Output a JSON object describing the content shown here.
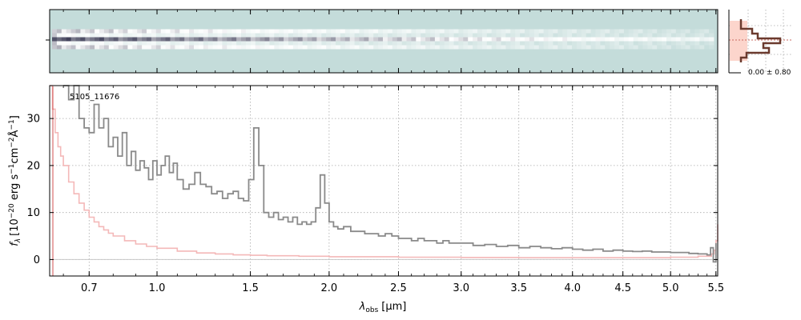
{
  "chart_data": [
    {
      "type": "heatmap",
      "description_role": "2D spectrum",
      "x_ticks": [
        "0.7",
        "1.0",
        "1.5",
        "2.0",
        "2.5",
        "3.0",
        "3.5",
        "4.0",
        "4.5",
        "5.0",
        "5.5"
      ],
      "x_ticks_um": [
        0.7,
        1.0,
        1.5,
        2.0,
        2.5,
        3.0,
        3.5,
        4.0,
        4.5,
        5.0,
        5.5
      ],
      "xlim_um": [
        0.55,
        5.52
      ],
      "colormap": [
        "#c4dcda",
        "#ffffff",
        "#1c1c3a"
      ],
      "trace_rows": [
        {
          "offset": 0,
          "level": 1.0
        },
        {
          "offset": 1,
          "level": 0.6
        },
        {
          "offset": -1,
          "level": 0.6
        },
        {
          "offset": 2,
          "level": 0.3
        },
        {
          "offset": -2,
          "level": 0.3
        }
      ]
    },
    {
      "type": "line",
      "description_role": "1D spectrum",
      "label": "5105_11676",
      "xlabel": "λ_obs [μm]",
      "xlabel_main": "λ",
      "xlabel_sub": "obs",
      "xlabel_unit": "[μm]",
      "ylabel": "f_λ [10^-20 erg s^-1 cm^-2 Å^-1]",
      "ylabel_parts": {
        "f": "f",
        "lam": "λ",
        "prefix": "[10",
        "exp1": "−20",
        "mid1": " erg s",
        "exp2": "−1",
        "mid2": "cm",
        "exp3": "−2",
        "mid3": "Å",
        "exp4": "−1",
        "end": "]"
      },
      "xlim_um": [
        0.55,
        5.52
      ],
      "ylim": [
        -3.5,
        37
      ],
      "x_ticks": [
        "0.7",
        "1.0",
        "1.5",
        "2.0",
        "2.5",
        "3.0",
        "3.5",
        "4.0",
        "4.5",
        "5.0",
        "5.5"
      ],
      "x_ticks_um": [
        0.7,
        1.0,
        1.5,
        2.0,
        2.5,
        3.0,
        3.5,
        4.0,
        4.5,
        5.0,
        5.5
      ],
      "y_ticks": [
        0,
        10,
        20,
        30
      ],
      "grid": true,
      "series": [
        {
          "role": "flux",
          "color": "#8a8a8a",
          "x": [
            0.6,
            0.62,
            0.64,
            0.66,
            0.68,
            0.7,
            0.72,
            0.74,
            0.76,
            0.78,
            0.8,
            0.82,
            0.84,
            0.86,
            0.88,
            0.9,
            0.92,
            0.94,
            0.96,
            0.98,
            1.0,
            1.02,
            1.04,
            1.06,
            1.08,
            1.1,
            1.13,
            1.16,
            1.19,
            1.22,
            1.25,
            1.28,
            1.31,
            1.34,
            1.37,
            1.4,
            1.43,
            1.46,
            1.49,
            1.52,
            1.55,
            1.58,
            1.61,
            1.64,
            1.67,
            1.7,
            1.73,
            1.76,
            1.79,
            1.82,
            1.85,
            1.88,
            1.91,
            1.94,
            1.97,
            2.0,
            2.03,
            2.06,
            2.1,
            2.15,
            2.2,
            2.25,
            2.3,
            2.35,
            2.4,
            2.45,
            2.5,
            2.55,
            2.6,
            2.65,
            2.7,
            2.75,
            2.8,
            2.85,
            2.9,
            2.95,
            3.0,
            3.1,
            3.2,
            3.3,
            3.4,
            3.5,
            3.6,
            3.7,
            3.8,
            3.9,
            4.0,
            4.1,
            4.2,
            4.3,
            4.4,
            4.5,
            4.6,
            4.7,
            4.8,
            4.9,
            5.0,
            5.1,
            5.2,
            5.3,
            5.4,
            5.44,
            5.47,
            5.5
          ],
          "y": [
            37.0,
            34.0,
            37.0,
            30.0,
            28.0,
            27.0,
            33.0,
            28.0,
            30.0,
            24.0,
            26.0,
            22.0,
            27.0,
            20.0,
            23.0,
            19.0,
            21.0,
            19.5,
            17.0,
            21.0,
            18.0,
            20.0,
            22.0,
            18.5,
            20.5,
            17.0,
            15.0,
            16.0,
            18.5,
            16.0,
            15.5,
            14.0,
            14.5,
            13.0,
            14.0,
            14.5,
            13.0,
            12.5,
            17.0,
            28.0,
            20.0,
            10.0,
            9.0,
            10.0,
            8.5,
            9.0,
            8.0,
            9.0,
            7.5,
            8.0,
            7.5,
            8.0,
            11.0,
            18.0,
            12.0,
            8.0,
            7.0,
            6.5,
            7.0,
            6.0,
            6.0,
            5.5,
            5.5,
            5.0,
            5.5,
            5.0,
            4.5,
            4.5,
            4.0,
            4.5,
            4.0,
            4.0,
            3.5,
            4.0,
            3.5,
            3.5,
            3.5,
            3.0,
            3.2,
            2.8,
            3.0,
            2.5,
            2.8,
            2.5,
            2.3,
            2.5,
            2.2,
            2.0,
            2.2,
            1.8,
            2.0,
            1.8,
            1.7,
            1.8,
            1.6,
            1.6,
            1.5,
            1.5,
            1.3,
            1.2,
            1.0,
            2.5,
            -0.5,
            3.5
          ]
        },
        {
          "role": "uncertainty",
          "color": "#f4b8b8",
          "x": [
            0.55,
            0.56,
            0.57,
            0.58,
            0.59,
            0.6,
            0.62,
            0.64,
            0.66,
            0.68,
            0.7,
            0.72,
            0.74,
            0.76,
            0.78,
            0.8,
            0.85,
            0.9,
            0.95,
            1.0,
            1.1,
            1.2,
            1.3,
            1.4,
            1.5,
            1.6,
            1.8,
            2.0,
            2.5,
            3.0,
            3.5,
            4.0,
            4.5,
            5.0,
            5.3,
            5.45,
            5.48,
            5.5,
            5.52
          ],
          "y": [
            37.0,
            32.0,
            27.0,
            24.0,
            22.0,
            20.0,
            16.5,
            14.0,
            12.0,
            10.5,
            9.0,
            8.0,
            7.0,
            6.3,
            5.6,
            5.0,
            4.0,
            3.3,
            2.8,
            2.4,
            1.8,
            1.4,
            1.2,
            1.0,
            0.9,
            0.8,
            0.7,
            0.6,
            0.5,
            0.45,
            0.4,
            0.4,
            0.4,
            0.5,
            0.7,
            1.2,
            2.0,
            4.0,
            7.5
          ]
        }
      ]
    },
    {
      "type": "line",
      "description_role": "spatial profile",
      "annotation": "0.00 ± 0.80",
      "colors": {
        "profile": "#6b3a2e",
        "fill": "#fcd5cc"
      },
      "profile": [
        0.2,
        0.2,
        0.4,
        0.5,
        0.9,
        0.6,
        0.7,
        0.3,
        0.2
      ]
    }
  ]
}
